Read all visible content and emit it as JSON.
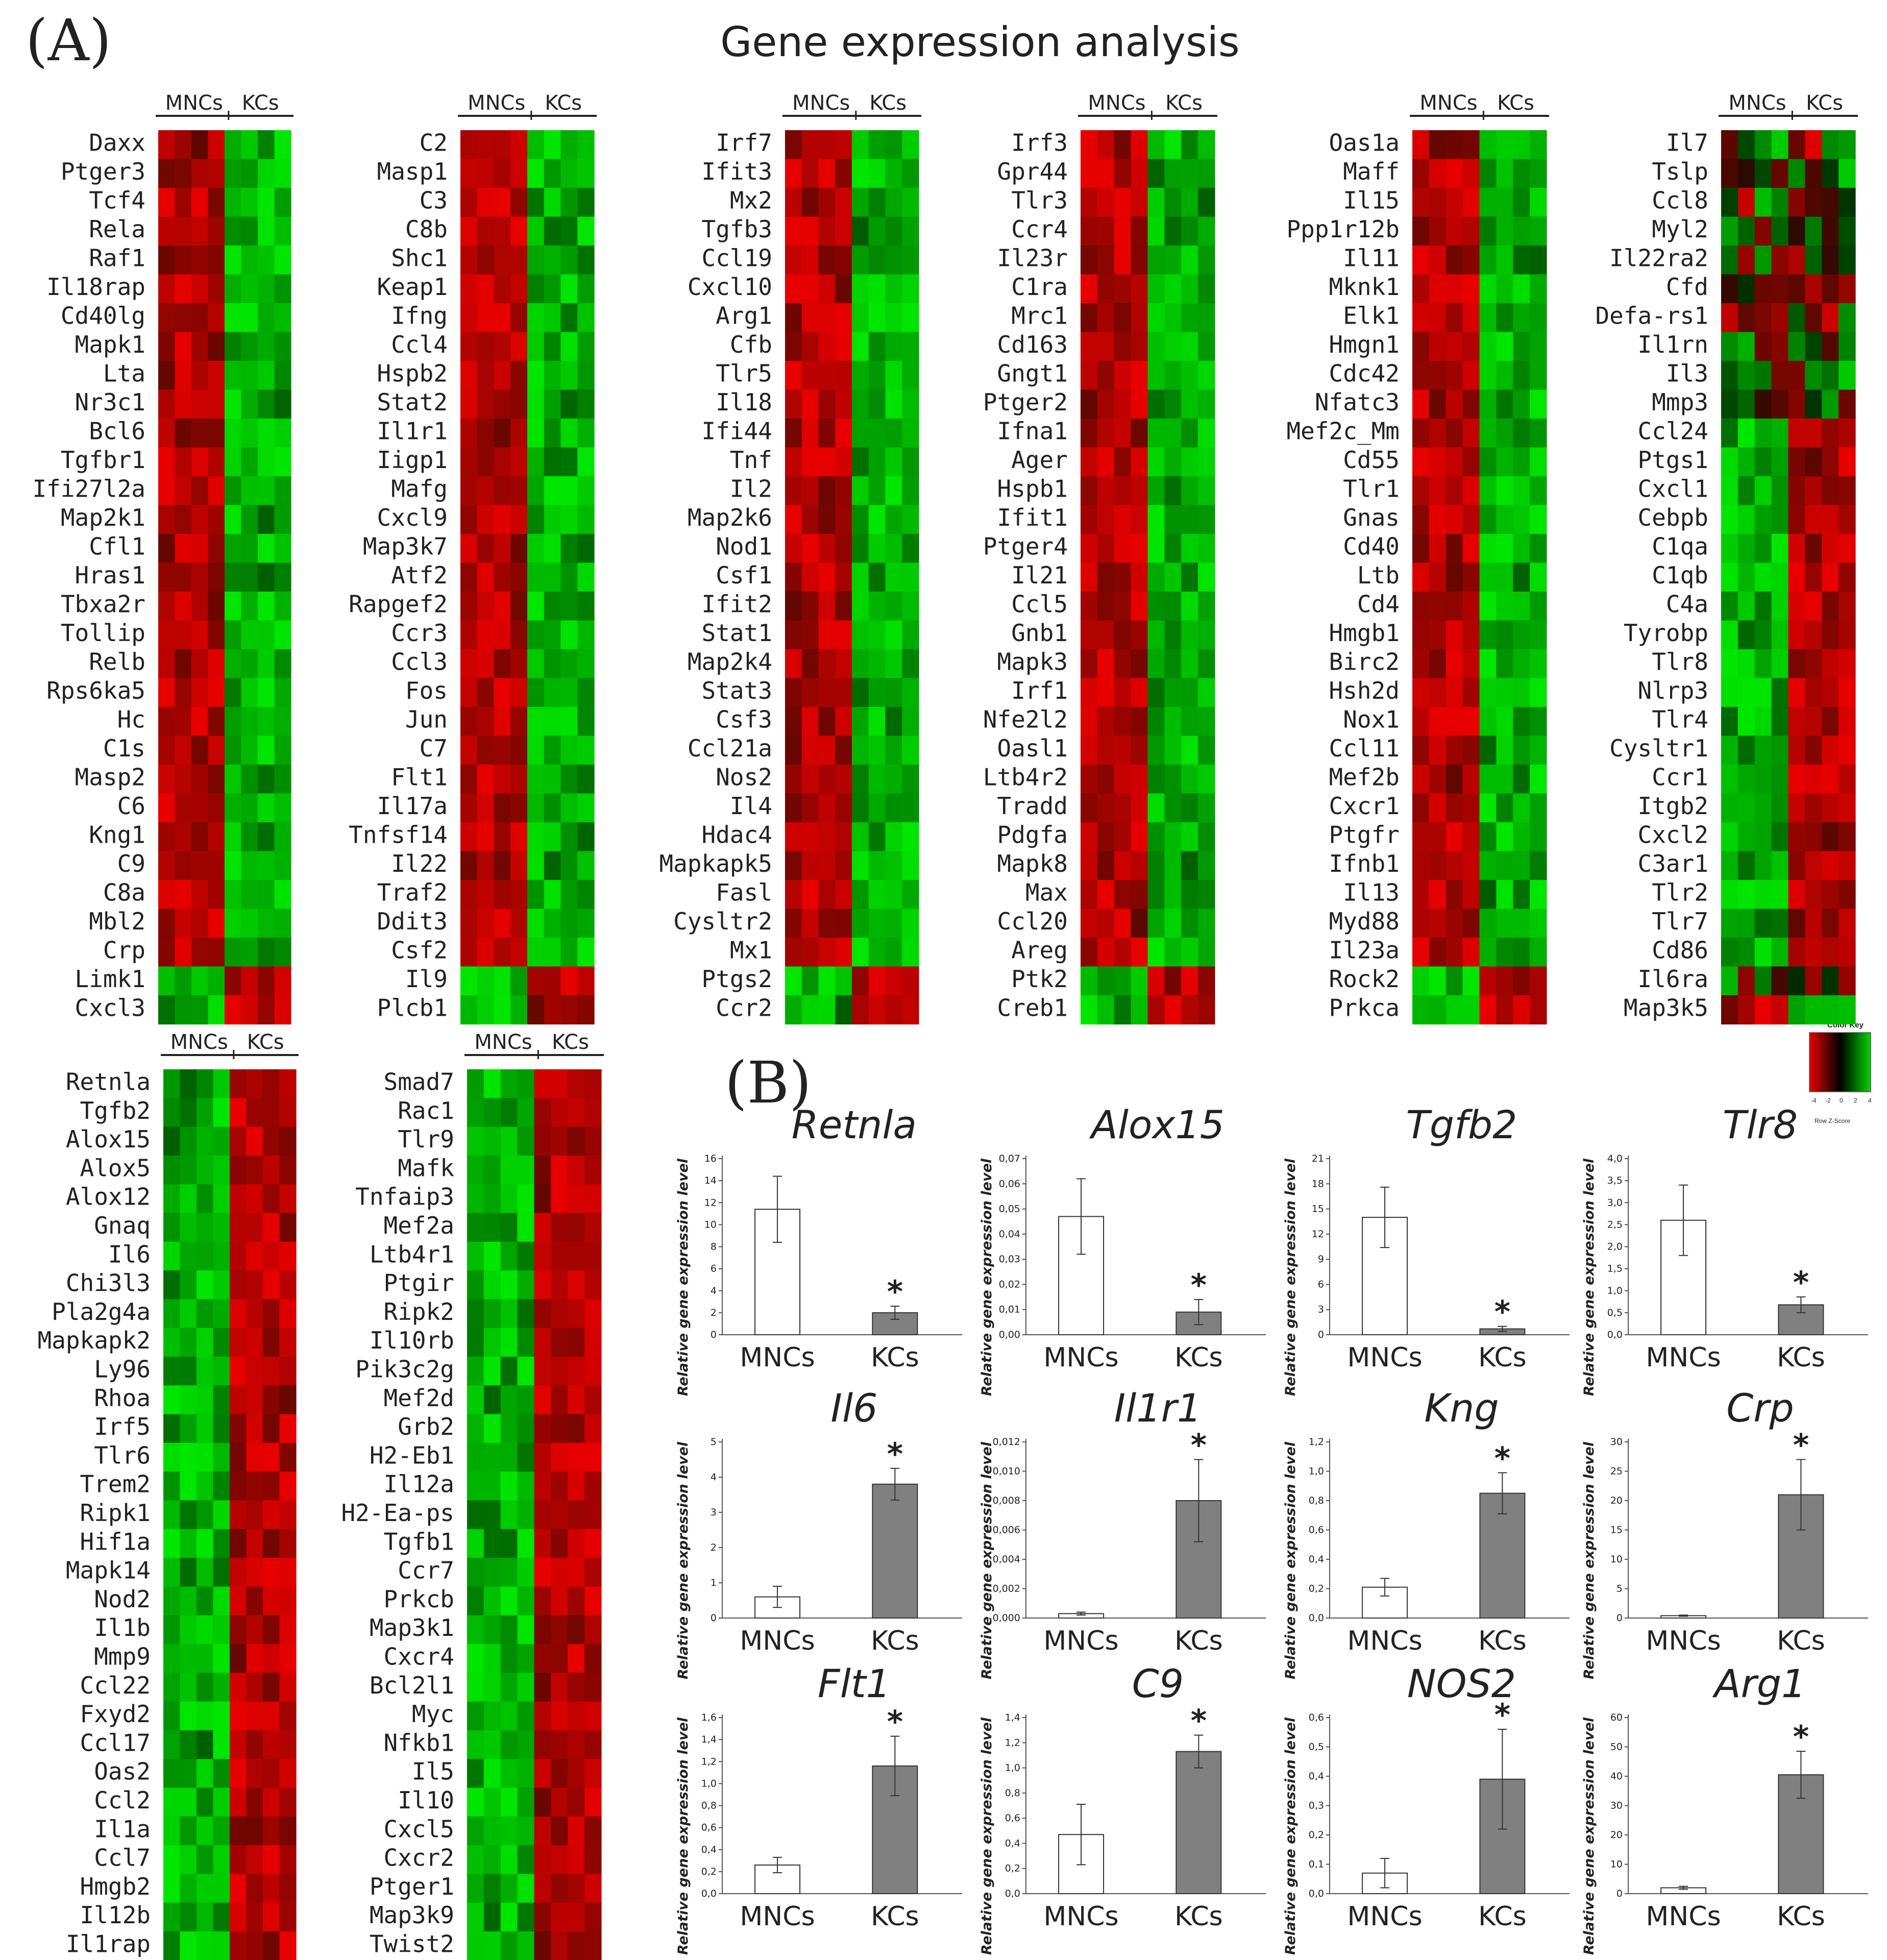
{
  "figure": {
    "title": "Gene expression analysis",
    "panel_a_label": "(A)",
    "panel_b_label": "(B)"
  },
  "colors": {
    "up": "#e60000",
    "mid": "#000000",
    "down": "#00d400",
    "mncs_bar": "#ffffff",
    "kcs_bar": "#808080"
  },
  "color_key": {
    "title": "Color Key",
    "ticks": [
      "-4",
      "-2",
      "0",
      "2",
      "4"
    ],
    "label": "Row Z-Score"
  },
  "chart_data": {
    "heatmaps": [
      {
        "group_labels": [
          "MNCs",
          "KCs"
        ],
        "genes": [
          "Daxx",
          "Ptger3",
          "Tcf4",
          "Rela",
          "Raf1",
          "Il18rap",
          "Cd40lg",
          "Mapk1",
          "Lta",
          "Nr3c1",
          "Bcl6",
          "Tgfbr1",
          "Ifi27l2a",
          "Map2k1",
          "Cfl1",
          "Hras1",
          "Tbxa2r",
          "Tollip",
          "Relb",
          "Rps6ka5",
          "Hc",
          "C1s",
          "Masp2",
          "C6",
          "Kng1",
          "C9",
          "C8a",
          "Mbl2",
          "Crp",
          "Limk1",
          "Cxcl3"
        ],
        "row_direction": [
          1,
          1,
          1,
          1,
          1,
          1,
          1,
          1,
          1,
          1,
          1,
          1,
          1,
          1,
          1,
          1,
          1,
          1,
          1,
          1,
          1,
          1,
          1,
          1,
          1,
          1,
          1,
          1,
          1,
          -1,
          -1
        ]
      },
      {
        "group_labels": [
          "MNCs",
          "KCs"
        ],
        "genes": [
          "C2",
          "Masp1",
          "C3",
          "C8b",
          "Shc1",
          "Keap1",
          "Ifng",
          "Ccl4",
          "Hspb2",
          "Stat2",
          "Il1r1",
          "Iigp1",
          "Mafg",
          "Cxcl9",
          "Map3k7",
          "Atf2",
          "Rapgef2",
          "Ccr3",
          "Ccl3",
          "Fos",
          "Jun",
          "C7",
          "Flt1",
          "Il17a",
          "Tnfsf14",
          "Il22",
          "Traf2",
          "Ddit3",
          "Csf2",
          "Il9",
          "Plcb1"
        ],
        "row_direction": [
          1,
          1,
          1,
          1,
          1,
          1,
          1,
          1,
          1,
          1,
          1,
          1,
          1,
          1,
          1,
          1,
          1,
          1,
          1,
          1,
          1,
          1,
          1,
          1,
          1,
          1,
          1,
          1,
          1,
          -1,
          -1
        ]
      },
      {
        "group_labels": [
          "MNCs",
          "KCs"
        ],
        "genes": [
          "Irf7",
          "Ifit3",
          "Mx2",
          "Tgfb3",
          "Ccl19",
          "Cxcl10",
          "Arg1",
          "Cfb",
          "Tlr5",
          "Il18",
          "Ifi44",
          "Tnf",
          "Il2",
          "Map2k6",
          "Nod1",
          "Csf1",
          "Ifit2",
          "Stat1",
          "Map2k4",
          "Stat3",
          "Csf3",
          "Ccl21a",
          "Nos2",
          "Il4",
          "Hdac4",
          "Mapkapk5",
          "Fasl",
          "Cysltr2",
          "Mx1",
          "Ptgs2",
          "Ccr2"
        ],
        "row_direction": [
          1,
          1,
          1,
          1,
          1,
          1,
          1,
          1,
          1,
          1,
          1,
          1,
          1,
          1,
          1,
          1,
          1,
          1,
          1,
          1,
          1,
          1,
          1,
          1,
          1,
          1,
          1,
          1,
          1,
          -1,
          -1
        ]
      },
      {
        "group_labels": [
          "MNCs",
          "KCs"
        ],
        "genes": [
          "Irf3",
          "Gpr44",
          "Tlr3",
          "Ccr4",
          "Il23r",
          "C1ra",
          "Mrc1",
          "Cd163",
          "Gngt1",
          "Ptger2",
          "Ifna1",
          "Ager",
          "Hspb1",
          "Ifit1",
          "Ptger4",
          "Il21",
          "Ccl5",
          "Gnb1",
          "Mapk3",
          "Irf1",
          "Nfe2l2",
          "Oasl1",
          "Ltb4r2",
          "Tradd",
          "Pdgfa",
          "Mapk8",
          "Max",
          "Ccl20",
          "Areg",
          "Ptk2",
          "Creb1"
        ],
        "row_direction": [
          1,
          1,
          1,
          1,
          1,
          1,
          1,
          1,
          1,
          1,
          1,
          1,
          1,
          1,
          1,
          1,
          1,
          1,
          1,
          1,
          1,
          1,
          1,
          1,
          1,
          1,
          1,
          1,
          1,
          -1,
          -1
        ]
      },
      {
        "group_labels": [
          "MNCs",
          "KCs"
        ],
        "genes": [
          "Oas1a",
          "Maff",
          "Il15",
          "Ppp1r12b",
          "Il11",
          "Mknk1",
          "Elk1",
          "Hmgn1",
          "Cdc42",
          "Nfatc3",
          "Mef2c_Mm",
          "Cd55",
          "Tlr1",
          "Gnas",
          "Cd40",
          "Ltb",
          "Cd4",
          "Hmgb1",
          "Birc2",
          "Hsh2d",
          "Nox1",
          "Ccl11",
          "Mef2b",
          "Cxcr1",
          "Ptgfr",
          "Ifnb1",
          "Il13",
          "Myd88",
          "Il23a",
          "Rock2",
          "Prkca"
        ],
        "row_direction": [
          1,
          1,
          1,
          1,
          1,
          1,
          1,
          1,
          1,
          1,
          1,
          1,
          1,
          1,
          1,
          1,
          1,
          1,
          1,
          1,
          1,
          1,
          1,
          1,
          1,
          1,
          1,
          1,
          1,
          -1,
          -1
        ]
      },
      {
        "group_labels": [
          "MNCs",
          "KCs"
        ],
        "genes": [
          "Il7",
          "Tslp",
          "Ccl8",
          "Myl2",
          "Il22ra2",
          "Cfd",
          "Defa-rs1",
          "Il1rn",
          "Il3",
          "Mmp3",
          "Ccl24",
          "Ptgs1",
          "Cxcl1",
          "Cebpb",
          "C1qa",
          "C1qb",
          "C4a",
          "Tyrobp",
          "Tlr8",
          "Nlrp3",
          "Tlr4",
          "Cysltr1",
          "Ccr1",
          "Itgb2",
          "Cxcl2",
          "C3ar1",
          "Tlr2",
          "Tlr7",
          "Cd86",
          "Il6ra",
          "Map3k5"
        ],
        "row_direction": [
          0,
          0,
          0,
          0,
          0,
          0,
          0,
          0,
          0,
          0,
          -1,
          -1,
          -1,
          -1,
          -1,
          -1,
          -1,
          -1,
          -1,
          -1,
          -1,
          -1,
          -1,
          -1,
          -1,
          -1,
          -1,
          -1,
          -1,
          0,
          1
        ]
      },
      {
        "group_labels": [
          "MNCs",
          "KCs"
        ],
        "genes": [
          "Retnla",
          "Tgfb2",
          "Alox15",
          "Alox5",
          "Alox12",
          "Gnaq",
          "Il6",
          "Chi3l3",
          "Pla2g4a",
          "Mapkapk2",
          "Ly96",
          "Rhoa",
          "Irf5",
          "Tlr6",
          "Trem2",
          "Ripk1",
          "Hif1a",
          "Mapk14",
          "Nod2",
          "Il1b",
          "Mmp9",
          "Ccl22",
          "Fxyd2",
          "Ccl17",
          "Oas2",
          "Ccl2",
          "Il1a",
          "Ccl7",
          "Hmgb2",
          "Il12b",
          "Il1rap"
        ],
        "row_direction": [
          -1,
          -1,
          -1,
          -1,
          -1,
          -1,
          -1,
          -1,
          -1,
          -1,
          -1,
          -1,
          -1,
          -1,
          -1,
          -1,
          -1,
          -1,
          -1,
          -1,
          -1,
          -1,
          -1,
          -1,
          -1,
          -1,
          -1,
          -1,
          -1,
          -1,
          -1
        ]
      },
      {
        "group_labels": [
          "MNCs",
          "KCs"
        ],
        "genes": [
          "Smad7",
          "Rac1",
          "Tlr9",
          "Mafk",
          "Tnfaip3",
          "Mef2a",
          "Ltb4r1",
          "Ptgir",
          "Ripk2",
          "Il10rb",
          "Pik3c2g",
          "Mef2d",
          "Grb2",
          "H2-Eb1",
          "Il12a",
          "H2-Ea-ps",
          "Tgfb1",
          "Ccr7",
          "Prkcb",
          "Map3k1",
          "Cxcr4",
          "Bcl2l1",
          "Myc",
          "Nfkb1",
          "Il5",
          "Il10",
          "Cxcl5",
          "Cxcr2",
          "Ptger1",
          "Map3k9",
          "Twist2"
        ],
        "row_direction": [
          -1,
          -1,
          -1,
          -1,
          -1,
          -1,
          -1,
          -1,
          -1,
          -1,
          -1,
          -1,
          -1,
          -1,
          -1,
          -1,
          -1,
          -1,
          -1,
          -1,
          -1,
          -1,
          -1,
          -1,
          -1,
          -1,
          -1,
          -1,
          -1,
          -1,
          -1
        ]
      }
    ],
    "bar_charts": [
      {
        "type": "bar",
        "title": "Retnla",
        "categories": [
          "MNCs",
          "KCs"
        ],
        "values": [
          11.4,
          2.0
        ],
        "errors": [
          3.0,
          0.6
        ],
        "ylim": [
          0,
          16
        ],
        "yticks": [
          "0",
          "2",
          "4",
          "6",
          "8",
          "10",
          "12",
          "14",
          "16"
        ],
        "ylabel": "Relative gene expression level",
        "significant": [
          false,
          true
        ],
        "star": "*"
      },
      {
        "type": "bar",
        "title": "Alox15",
        "categories": [
          "MNCs",
          "KCs"
        ],
        "values": [
          0.047,
          0.009
        ],
        "errors": [
          0.015,
          0.005
        ],
        "ylim": [
          0,
          0.07
        ],
        "yticks": [
          "0,00",
          "0,01",
          "0,02",
          "0,03",
          "0,04",
          "0,05",
          "0,06",
          "0,07"
        ],
        "ylabel": "Relative gene expression level",
        "significant": [
          false,
          true
        ],
        "star": "*"
      },
      {
        "type": "bar",
        "title": "Tgfb2",
        "categories": [
          "MNCs",
          "KCs"
        ],
        "values": [
          14.0,
          0.7
        ],
        "errors": [
          3.6,
          0.3
        ],
        "ylim": [
          0,
          21
        ],
        "yticks": [
          "0",
          "3",
          "6",
          "9",
          "12",
          "15",
          "18",
          "21"
        ],
        "ylabel": "Relative gene expression level",
        "significant": [
          false,
          true
        ],
        "star": "*"
      },
      {
        "type": "bar",
        "title": "Tlr8",
        "categories": [
          "MNCs",
          "KCs"
        ],
        "values": [
          2.6,
          0.68
        ],
        "errors": [
          0.8,
          0.18
        ],
        "ylim": [
          0,
          4
        ],
        "yticks": [
          "0,0",
          "0,5",
          "1,0",
          "1,5",
          "2,0",
          "2,5",
          "3,0",
          "3,5",
          "4,0"
        ],
        "ylabel": "Relative gene expression level",
        "significant": [
          false,
          true
        ],
        "star": "*"
      },
      {
        "type": "bar",
        "title": "Il6",
        "categories": [
          "MNCs",
          "KCs"
        ],
        "values": [
          0.6,
          3.8
        ],
        "errors": [
          0.3,
          0.45
        ],
        "ylim": [
          0,
          5
        ],
        "yticks": [
          "0",
          "1",
          "2",
          "3",
          "4",
          "5"
        ],
        "ylabel": "Relative gene expression level",
        "significant": [
          false,
          true
        ],
        "star": "*"
      },
      {
        "type": "bar",
        "title": "Il1r1",
        "categories": [
          "MNCs",
          "KCs"
        ],
        "values": [
          0.0003,
          0.008
        ],
        "errors": [
          0.0001,
          0.0028
        ],
        "ylim": [
          0,
          0.012
        ],
        "yticks": [
          "0,000",
          "0,002",
          "0,004",
          "0,006",
          "0,008",
          "0,010",
          "0,012"
        ],
        "ylabel": "Relative gene expression level",
        "significant": [
          false,
          true
        ],
        "star": "*"
      },
      {
        "type": "bar",
        "title": "Kng",
        "categories": [
          "MNCs",
          "KCs"
        ],
        "values": [
          0.21,
          0.85
        ],
        "errors": [
          0.06,
          0.14
        ],
        "ylim": [
          0,
          1.2
        ],
        "yticks": [
          "0,0",
          "0,2",
          "0,4",
          "0,6",
          "0,8",
          "1,0",
          "1,2"
        ],
        "ylabel": "Relative gene expression level",
        "significant": [
          false,
          true
        ],
        "star": "*"
      },
      {
        "type": "bar",
        "title": "Crp",
        "categories": [
          "MNCs",
          "KCs"
        ],
        "values": [
          0.4,
          21.0
        ],
        "errors": [
          0.1,
          6.0
        ],
        "ylim": [
          0,
          30
        ],
        "yticks": [
          "0",
          "5",
          "10",
          "15",
          "20",
          "25",
          "30"
        ],
        "ylabel": "Relative gene expression level",
        "significant": [
          false,
          true
        ],
        "star": "*"
      },
      {
        "type": "bar",
        "title": "Flt1",
        "categories": [
          "MNCs",
          "KCs"
        ],
        "values": [
          0.26,
          1.16
        ],
        "errors": [
          0.07,
          0.27
        ],
        "ylim": [
          0,
          1.6
        ],
        "yticks": [
          "0,0",
          "0,2",
          "0,4",
          "0,6",
          "0,8",
          "1,0",
          "1,2",
          "1,4",
          "1,6"
        ],
        "ylabel": "Relative gene expression level",
        "significant": [
          false,
          true
        ],
        "star": "*"
      },
      {
        "type": "bar",
        "title": "C9",
        "categories": [
          "MNCs",
          "KCs"
        ],
        "values": [
          0.47,
          1.13
        ],
        "errors": [
          0.24,
          0.13
        ],
        "ylim": [
          0,
          1.4
        ],
        "yticks": [
          "0,0",
          "0,2",
          "0,4",
          "0,6",
          "0,8",
          "1,0",
          "1,2",
          "1,4"
        ],
        "ylabel": "Relative gene expression level",
        "significant": [
          false,
          true
        ],
        "star": "*"
      },
      {
        "type": "bar",
        "title": "NOS2",
        "categories": [
          "MNCs",
          "KCs"
        ],
        "values": [
          0.07,
          0.39
        ],
        "errors": [
          0.05,
          0.17
        ],
        "ylim": [
          0,
          0.6
        ],
        "yticks": [
          "0,0",
          "0,1",
          "0,2",
          "0,3",
          "0,4",
          "0,5",
          "0,6"
        ],
        "ylabel": "Relative gene expression level",
        "significant": [
          false,
          true
        ],
        "star": "*"
      },
      {
        "type": "bar",
        "title": "Arg1",
        "categories": [
          "MNCs",
          "KCs"
        ],
        "values": [
          2.0,
          40.5
        ],
        "errors": [
          0.5,
          8.0
        ],
        "ylim": [
          0,
          60
        ],
        "yticks": [
          "0",
          "10",
          "20",
          "30",
          "40",
          "50",
          "60"
        ],
        "ylabel": "Relative gene expression level",
        "significant": [
          false,
          true
        ],
        "star": "*"
      }
    ]
  }
}
